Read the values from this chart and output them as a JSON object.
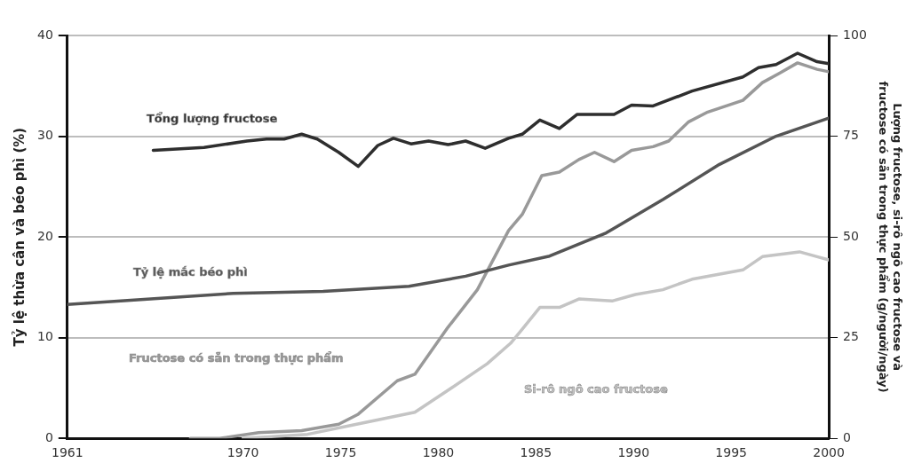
{
  "chart_data": {
    "type": "line",
    "ylabel": "Tỷ lệ thừa cân và béo phì (%)",
    "y2label": "Lượng fructose, si-rô ngô cao fructose và fructose có sẵn trong thực phẩm (g/người/ngày)",
    "xlim": [
      1961,
      2000
    ],
    "xticks": [
      1961,
      1970,
      1975,
      1980,
      1985,
      1990,
      1995,
      2000
    ],
    "ylim": [
      0,
      40
    ],
    "yticks": [
      0,
      10,
      20,
      30,
      40
    ],
    "y2lim": [
      0,
      100
    ],
    "y2ticks": [
      0,
      25,
      50,
      75,
      100
    ],
    "grid": "y",
    "legend": false,
    "marker": "none",
    "line_style": "solid",
    "series": [
      {
        "name": "Tổng lượng fructose",
        "color": "#2e2e2e",
        "axis": "y2",
        "x": [
          1965.4,
          1968,
          1970.2,
          1971.2,
          1972.1,
          1973,
          1973.8,
          1974.9,
          1975.9,
          1976.9,
          1977.7,
          1978.6,
          1979.5,
          1980.5,
          1981.4,
          1982.4,
          1983.6,
          1984.3,
          1985.2,
          1986.2,
          1987.1,
          1989,
          1989.9,
          1991,
          1993,
          1995.6,
          1996.4,
          1997.3,
          1998.4,
          1999.4,
          2000
        ],
        "values": [
          71.5,
          72.2,
          73.8,
          74.3,
          74.3,
          75.5,
          74.3,
          71,
          67.5,
          72.7,
          74.5,
          73.1,
          73.8,
          72.9,
          73.8,
          72,
          74.5,
          75.5,
          79,
          76.9,
          80.4,
          80.4,
          82.7,
          82.5,
          86.2,
          89.7,
          92,
          92.8,
          95.6,
          93.5,
          93
        ]
      },
      {
        "name": "Tỷ lệ mắc béo phì",
        "color": "#555555",
        "x": [
          1961,
          1969.5,
          1974.1,
          1978.5,
          1981.4,
          1983.6,
          1985.7,
          1988.6,
          1991.5,
          1994.4,
          1997.3,
          2000
        ],
        "values": [
          13.3,
          14.4,
          14.6,
          15.1,
          16.1,
          17.2,
          18.1,
          20.4,
          23.7,
          27.2,
          30,
          31.8
        ]
      },
      {
        "name": "Fructose có sẵn trong thực phẩm",
        "color": "#999999",
        "axis": "y2",
        "x": [
          1967.3,
          1968.8,
          1970.8,
          1973,
          1974.9,
          1975.9,
          1977.9,
          1978.8,
          1980.5,
          1982,
          1983.6,
          1984.3,
          1985.3,
          1986.2,
          1987.2,
          1988,
          1989,
          1989.9,
          1991,
          1991.8,
          1992.8,
          1993.8,
          1995.6,
          1996.6,
          1997.5,
          1998.4,
          1999.4,
          2000
        ],
        "values": [
          0,
          0,
          1.4,
          1.9,
          3.5,
          6,
          14.3,
          15.9,
          27.6,
          36.9,
          51.6,
          55.6,
          65.2,
          66.1,
          69.2,
          71,
          68.7,
          71.5,
          72.4,
          73.8,
          78.5,
          81,
          83.9,
          88.3,
          90.7,
          93.2,
          91.6,
          91
        ]
      },
      {
        "name": "Si-rô ngô cao fructose",
        "color": "#c4c4c4",
        "axis": "y2",
        "x": [
          1970,
          1973.3,
          1975.6,
          1978.8,
          1980.7,
          1982.5,
          1983.7,
          1984.3,
          1985.2,
          1986.2,
          1987.2,
          1988.9,
          1990.1,
          1991.5,
          1993,
          1995.6,
          1996.6,
          1998.5,
          1999.4,
          2000
        ],
        "values": [
          0,
          1,
          3.3,
          6.5,
          12.6,
          18.5,
          23.6,
          27.1,
          32.5,
          32.5,
          34.6,
          34.1,
          35.7,
          36.9,
          39.5,
          41.8,
          45.1,
          46.3,
          45.1,
          44.3
        ]
      }
    ]
  }
}
